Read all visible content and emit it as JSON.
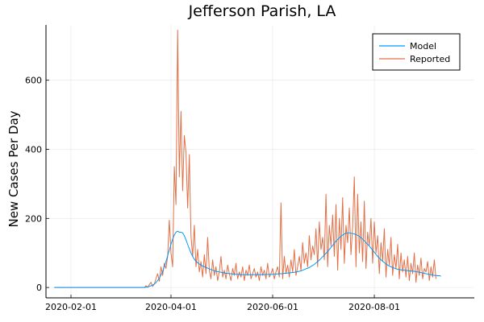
{
  "chart_data": {
    "type": "line",
    "title": "Jefferson Parish, LA",
    "xlabel": "",
    "ylabel": "New Cases Per Day",
    "x_start": "2020-01-22",
    "x_step": "1 day",
    "xlim": [
      "2020-01-17",
      "2020-09-30"
    ],
    "ylim": [
      -30,
      760
    ],
    "xticks": [
      "2020-02-01",
      "2020-04-01",
      "2020-06-01",
      "2020-08-01"
    ],
    "yticks": [
      0,
      200,
      400,
      600
    ],
    "grid": true,
    "legend": "top-right",
    "series": [
      {
        "name": "Model",
        "color": "#009AFA",
        "values": [
          0,
          0,
          0,
          0,
          0,
          0,
          0,
          0,
          0,
          0,
          0,
          0,
          0,
          0,
          0,
          0,
          0,
          0,
          0,
          0,
          0,
          0,
          0,
          0,
          0,
          0,
          0,
          0,
          0,
          0,
          0,
          0,
          0,
          0,
          0,
          0,
          0,
          0,
          0,
          0,
          0,
          0,
          0,
          0,
          0,
          0,
          0,
          0,
          0,
          0,
          0,
          0,
          0,
          0,
          0,
          1,
          2,
          3,
          5,
          7,
          10,
          14,
          20,
          27,
          36,
          47,
          60,
          75,
          92,
          108,
          125,
          140,
          152,
          160,
          163,
          160,
          160,
          158,
          150,
          138,
          125,
          112,
          100,
          90,
          82,
          76,
          72,
          68,
          65,
          62,
          60,
          58,
          56,
          54,
          52,
          50,
          48,
          47,
          46,
          45,
          44,
          43,
          42,
          41,
          41,
          40,
          40,
          39,
          39,
          38,
          38,
          38,
          37,
          37,
          37,
          37,
          37,
          37,
          37,
          37,
          37,
          37,
          37,
          37,
          37,
          37,
          37,
          38,
          38,
          38,
          38,
          38,
          39,
          39,
          39,
          40,
          40,
          40,
          41,
          41,
          42,
          42,
          43,
          43,
          44,
          45,
          46,
          47,
          48,
          50,
          52,
          54,
          56,
          58,
          61,
          64,
          67,
          71,
          75,
          79,
          84,
          89,
          94,
          99,
          104,
          110,
          116,
          122,
          128,
          134,
          139,
          144,
          148,
          152,
          155,
          157,
          158,
          158,
          157,
          156,
          155,
          153,
          151,
          148,
          144,
          140,
          135,
          130,
          125,
          120,
          114,
          108,
          102,
          96,
          90,
          85,
          80,
          76,
          72,
          68,
          65,
          62,
          60,
          58,
          56,
          54,
          53,
          52,
          51,
          50,
          50,
          49,
          49,
          48,
          48,
          47,
          47,
          46,
          45,
          44,
          43,
          42,
          41,
          40,
          39,
          38,
          37,
          36,
          35,
          35,
          34,
          34,
          33
        ]
      },
      {
        "name": "Reported",
        "color": "#E26F46",
        "values": [
          0,
          0,
          0,
          0,
          0,
          0,
          0,
          0,
          0,
          0,
          0,
          0,
          0,
          0,
          0,
          0,
          0,
          0,
          0,
          0,
          0,
          0,
          0,
          0,
          0,
          0,
          0,
          0,
          0,
          0,
          0,
          0,
          0,
          0,
          0,
          0,
          0,
          0,
          0,
          0,
          0,
          0,
          0,
          0,
          0,
          0,
          0,
          0,
          0,
          0,
          0,
          0,
          0,
          0,
          0,
          5,
          0,
          8,
          15,
          3,
          10,
          25,
          40,
          18,
          60,
          35,
          70,
          55,
          90,
          195,
          100,
          60,
          350,
          240,
          745,
          320,
          510,
          280,
          440,
          390,
          230,
          385,
          150,
          90,
          180,
          60,
          110,
          45,
          75,
          30,
          95,
          40,
          145,
          50,
          25,
          80,
          35,
          60,
          20,
          45,
          90,
          30,
          50,
          25,
          65,
          40,
          20,
          55,
          35,
          70,
          25,
          45,
          30,
          60,
          20,
          50,
          35,
          65,
          25,
          40,
          55,
          30,
          45,
          20,
          60,
          35,
          50,
          25,
          70,
          30,
          40,
          55,
          25,
          45,
          60,
          30,
          245,
          25,
          90,
          40,
          65,
          30,
          80,
          45,
          110,
          35,
          60,
          90,
          50,
          130,
          70,
          100,
          60,
          150,
          80,
          120,
          95,
          170,
          60,
          190,
          110,
          145,
          80,
          270,
          60,
          180,
          120,
          210,
          90,
          240,
          50,
          200,
          110,
          260,
          70,
          180,
          130,
          230,
          95,
          175,
          320,
          60,
          270,
          100,
          190,
          75,
          250,
          55,
          160,
          120,
          200,
          70,
          190,
          100,
          150,
          40,
          130,
          75,
          170,
          30,
          110,
          65,
          145,
          35,
          95,
          55,
          125,
          25,
          100,
          45,
          80,
          30,
          90,
          20,
          70,
          40,
          100,
          15,
          65,
          35,
          85,
          25,
          55,
          45,
          75,
          20,
          60,
          30,
          80,
          25
        ]
      }
    ]
  }
}
